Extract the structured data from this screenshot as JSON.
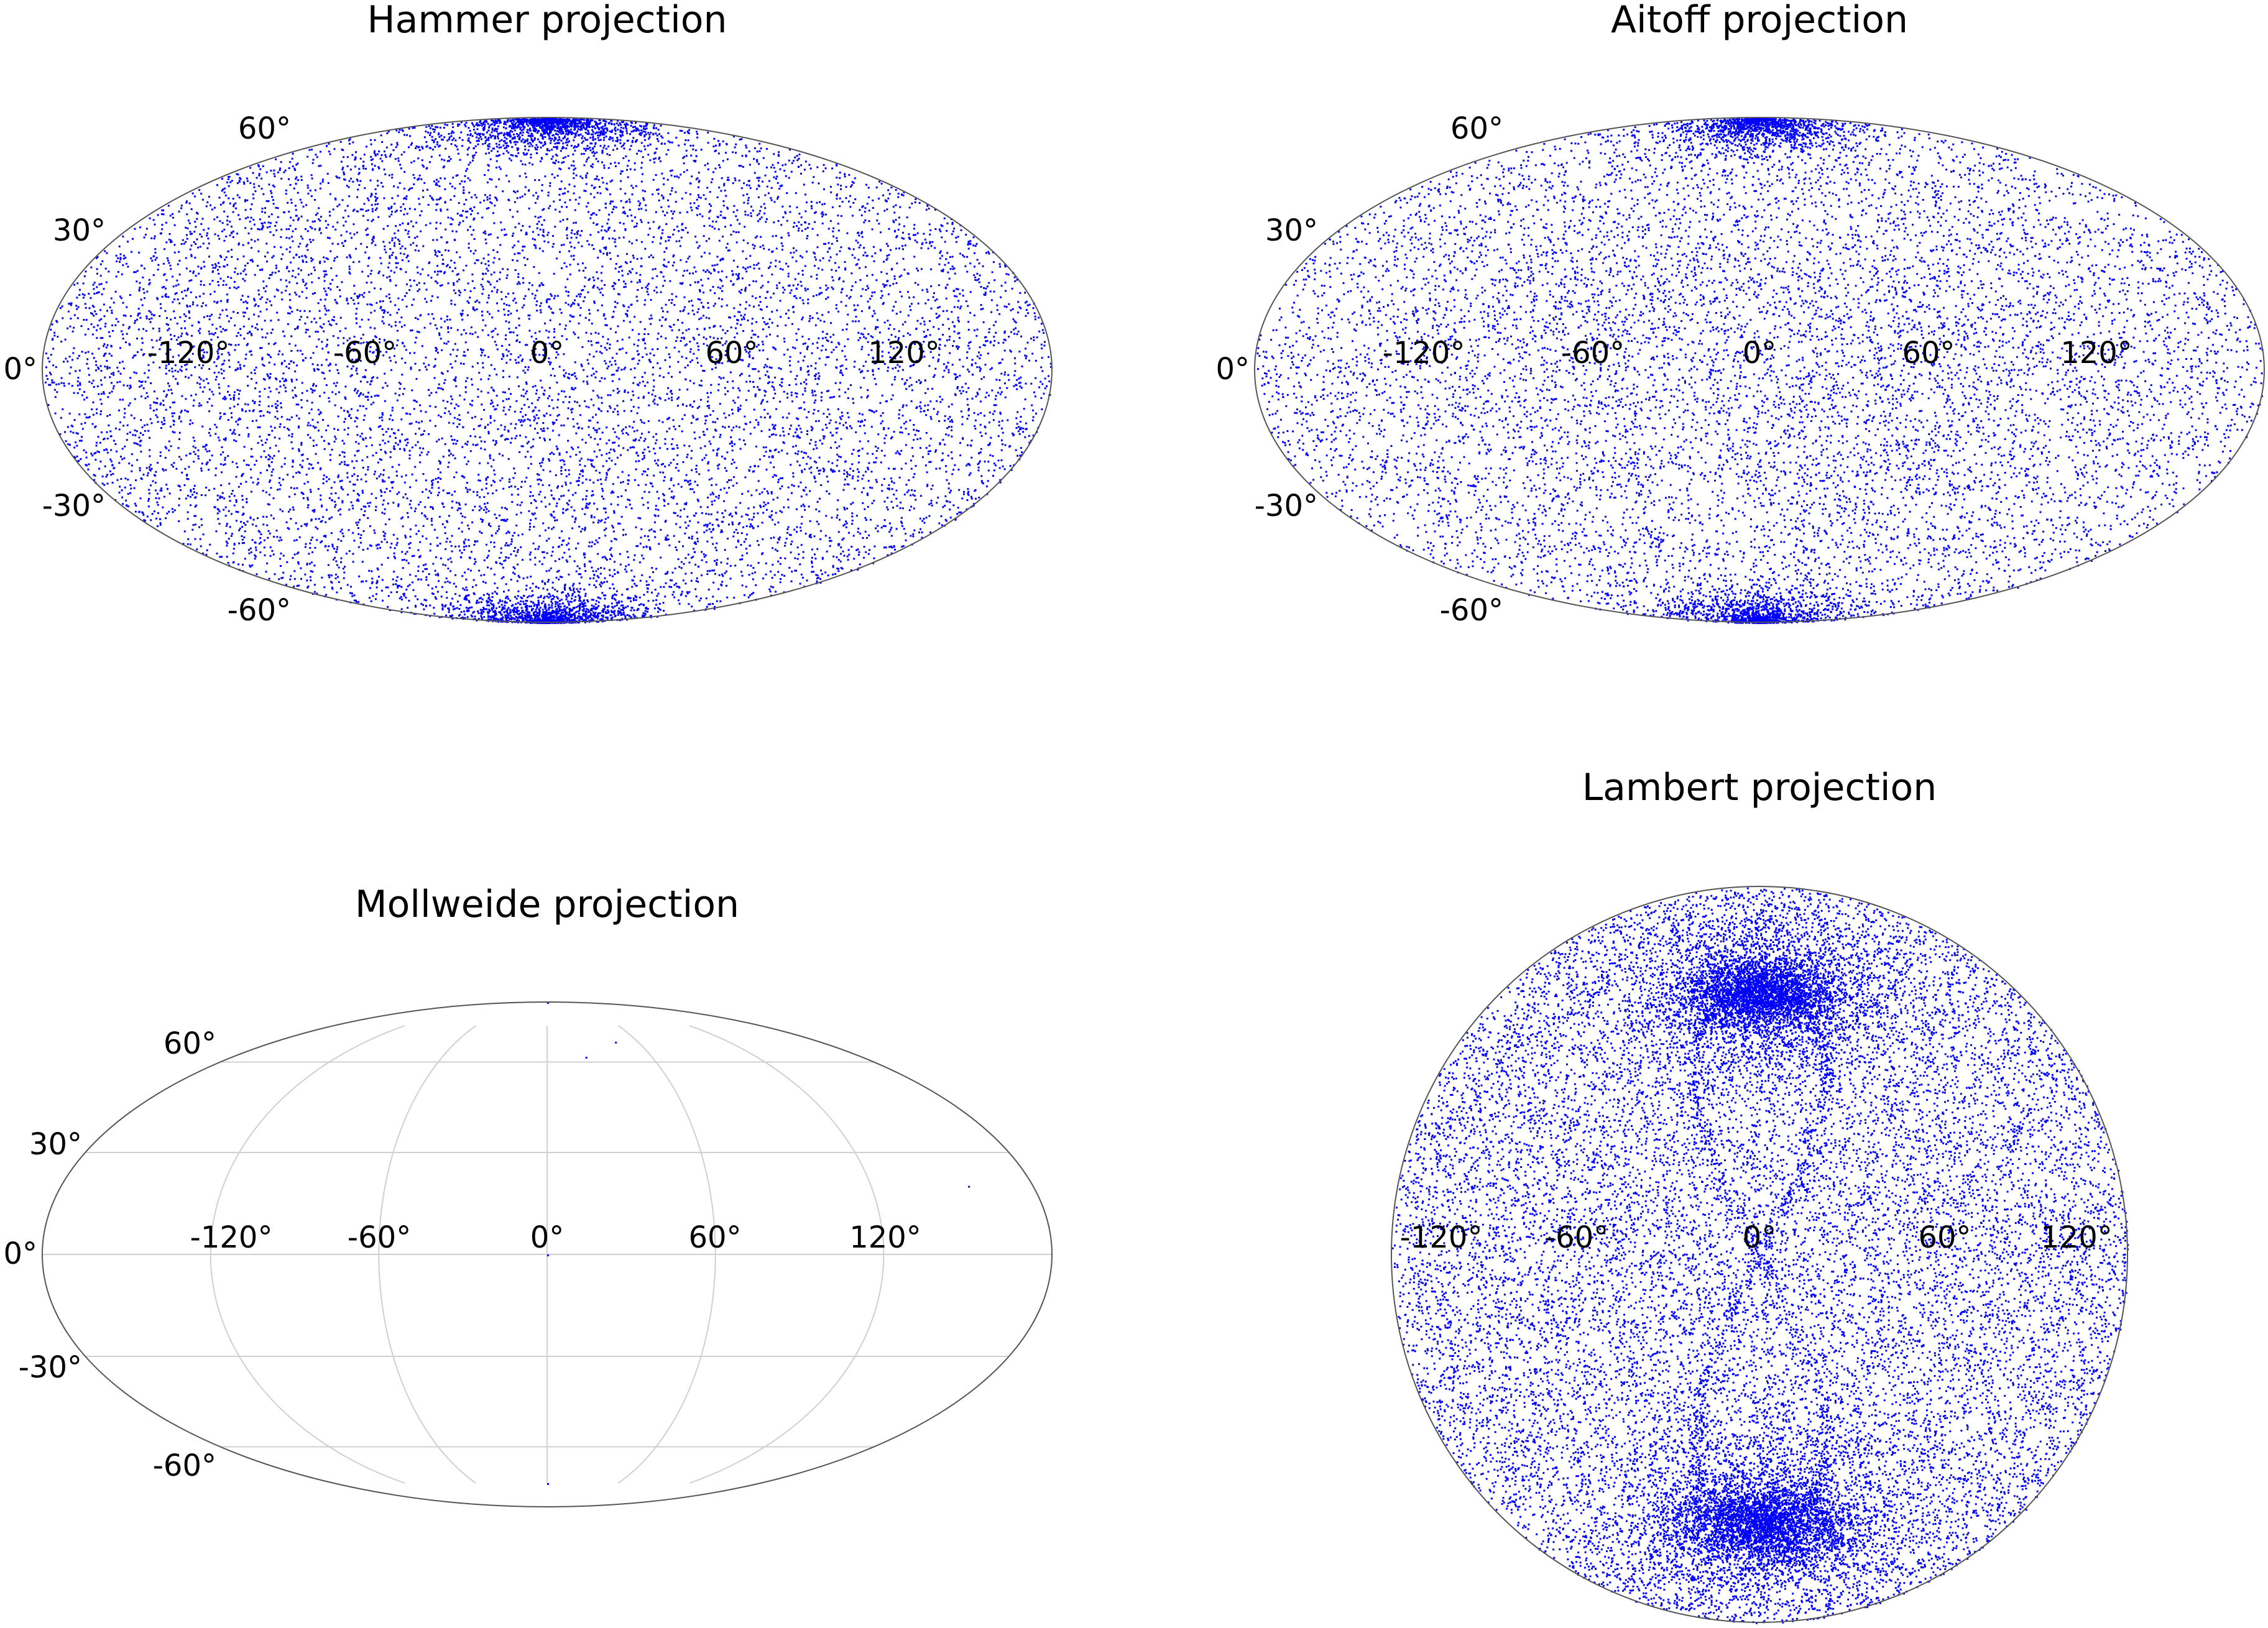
{
  "chart_data": [
    {
      "type": "scatter",
      "projection": "hammer",
      "title": "Hammer projection",
      "xtick_labels": [
        "-120°",
        "-60°",
        "0°",
        "60°",
        "120°"
      ],
      "ytick_labels": [
        "60°",
        "30°",
        "0°",
        "-30°",
        "-60°"
      ],
      "xticks": [
        -120,
        -60,
        0,
        60,
        120
      ],
      "yticks": [
        60,
        30,
        0,
        -30,
        -60
      ],
      "xlim": [
        -180,
        180
      ],
      "ylim": [
        -90,
        90
      ],
      "grid": false,
      "marker_color": "#0000ff",
      "n_points_approx": 12000,
      "distribution": "dense near both poles, roughly uniform elsewhere"
    },
    {
      "type": "scatter",
      "projection": "aitoff",
      "title": "Aitoff projection",
      "xtick_labels": [
        "-120°",
        "-60°",
        "0°",
        "60°",
        "120°"
      ],
      "ytick_labels": [
        "60°",
        "30°",
        "0°",
        "-30°",
        "-60°"
      ],
      "xticks": [
        -120,
        -60,
        0,
        60,
        120
      ],
      "yticks": [
        60,
        30,
        0,
        -30,
        -60
      ],
      "xlim": [
        -180,
        180
      ],
      "ylim": [
        -90,
        90
      ],
      "grid": false,
      "marker_color": "#0000ff",
      "n_points_approx": 12000,
      "distribution": "dense near both poles, roughly uniform elsewhere"
    },
    {
      "type": "scatter",
      "projection": "mollweide",
      "title": "Mollweide projection",
      "xtick_labels": [
        "-120°",
        "-60°",
        "0°",
        "60°",
        "120°"
      ],
      "ytick_labels": [
        "60°",
        "30°",
        "0°",
        "-30°",
        "-60°"
      ],
      "xticks": [
        -120,
        -60,
        0,
        60,
        120
      ],
      "yticks": [
        60,
        30,
        0,
        -30,
        -60
      ],
      "xlim": [
        -180,
        180
      ],
      "ylim": [
        -90,
        90
      ],
      "grid": true,
      "grid_color": "#d0d0d0",
      "marker_color": "#0000ff",
      "points": [
        [
          0,
          90
        ],
        [
          45,
          68
        ],
        [
          22,
          62
        ],
        [
          156,
          20
        ],
        [
          0,
          -75
        ],
        [
          0,
          0
        ]
      ]
    },
    {
      "type": "scatter",
      "projection": "lambert",
      "title": "Lambert projection",
      "xtick_labels": [
        "-120°",
        "-60°",
        "0°",
        "60°",
        "120°"
      ],
      "xticks": [
        -120,
        -60,
        0,
        60,
        120
      ],
      "grid": false,
      "marker_color": "#0000ff",
      "n_points_approx": 26000,
      "distribution": "two dense clusters above and below centre, figure-eight band through the centre"
    }
  ]
}
